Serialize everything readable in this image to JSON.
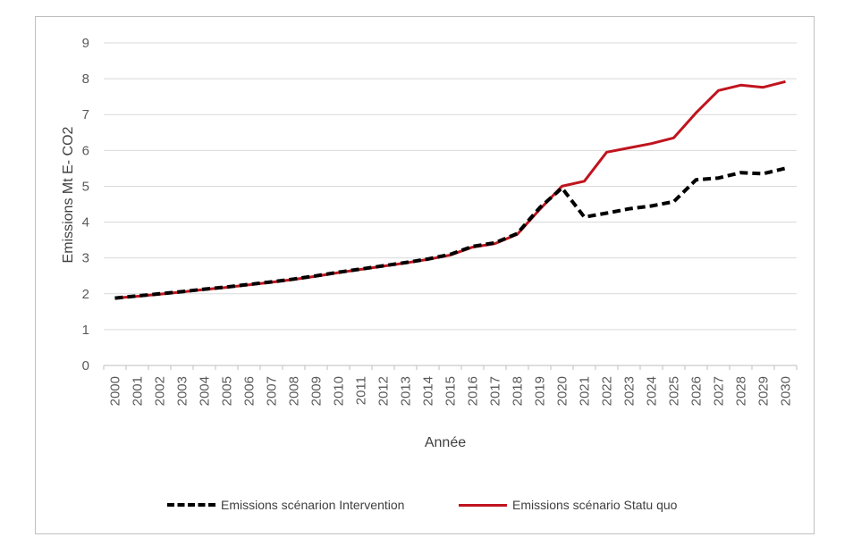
{
  "chart_data": {
    "type": "line",
    "title": "",
    "xlabel": "Année",
    "ylabel": "Emissions Mt E- CO2",
    "ylim": [
      0,
      9
    ],
    "yticks": [
      "0",
      "1",
      "2",
      "3",
      "4",
      "5",
      "6",
      "7",
      "8",
      "9"
    ],
    "categories": [
      "2000",
      "2001",
      "2002",
      "2003",
      "2004",
      "2005",
      "2006",
      "2007",
      "2008",
      "2009",
      "2010",
      "2011",
      "2012",
      "2013",
      "2014",
      "2015",
      "2016",
      "2017",
      "2018",
      "2019",
      "2020",
      "2021",
      "2022",
      "2023",
      "2024",
      "2025",
      "2026",
      "2027",
      "2028",
      "2029",
      "2030"
    ],
    "grid": "horizontal",
    "legend_position": "bottom",
    "series": [
      {
        "name": "Emissions scénarion Intervention",
        "style": "dashed",
        "color": "#000000",
        "values": [
          1.88,
          1.94,
          2.0,
          2.06,
          2.13,
          2.19,
          2.26,
          2.33,
          2.41,
          2.5,
          2.6,
          2.69,
          2.78,
          2.87,
          2.97,
          3.1,
          3.32,
          3.42,
          3.68,
          4.4,
          4.95,
          4.14,
          4.25,
          4.37,
          4.45,
          4.57,
          5.18,
          5.23,
          5.38,
          5.35,
          5.5
        ]
      },
      {
        "name": "Emissions scénario Statu quo",
        "style": "solid",
        "color": "#c0141e",
        "values": [
          1.88,
          1.93,
          1.99,
          2.05,
          2.12,
          2.18,
          2.25,
          2.32,
          2.4,
          2.49,
          2.59,
          2.68,
          2.77,
          2.86,
          2.96,
          3.08,
          3.3,
          3.4,
          3.66,
          4.35,
          5.0,
          5.14,
          5.95,
          6.07,
          6.19,
          6.35,
          7.05,
          7.67,
          7.82,
          7.76,
          7.92
        ]
      }
    ]
  }
}
